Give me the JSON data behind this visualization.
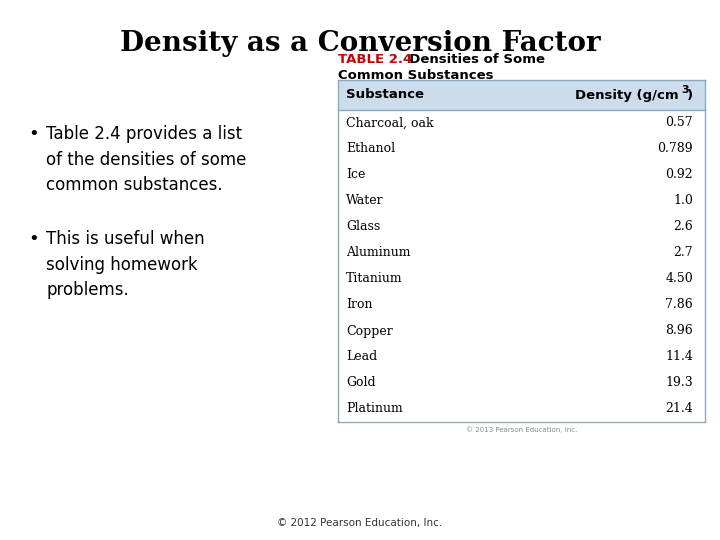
{
  "title": "Density as a Conversion Factor",
  "bullet_points": [
    "Table 2.4 provides a list\nof the densities of some\ncommon substances.",
    "This is useful when\nsolving homework\nproblems."
  ],
  "table_title_red": "TABLE 2.4",
  "table_title_rest": "  Densities of Some",
  "table_title_line2": "Common Substances",
  "table_header_col1": "Substance",
  "table_header_col2": "Density (g/cm",
  "table_rows": [
    [
      "Charcoal, oak",
      "0.57"
    ],
    [
      "Ethanol",
      "0.789"
    ],
    [
      "Ice",
      "0.92"
    ],
    [
      "Water",
      "1.0"
    ],
    [
      "Glass",
      "2.6"
    ],
    [
      "Aluminum",
      "2.7"
    ],
    [
      "Titanium",
      "4.50"
    ],
    [
      "Iron",
      "7.86"
    ],
    [
      "Copper",
      "8.96"
    ],
    [
      "Lead",
      "11.4"
    ],
    [
      "Gold",
      "19.3"
    ],
    [
      "Platinum",
      "21.4"
    ]
  ],
  "header_bg_color": "#ccdcec",
  "table_border_color": "#8aabbf",
  "title_color": "#000000",
  "red_color": "#cc0000",
  "bg_color": "#ffffff",
  "footer_text": "© 2012 Pearson Education, Inc.",
  "title_fontsize": 20,
  "bullet_fontsize": 12,
  "table_title_fontsize": 9.5,
  "table_fontsize": 9,
  "footer_fontsize": 7.5
}
